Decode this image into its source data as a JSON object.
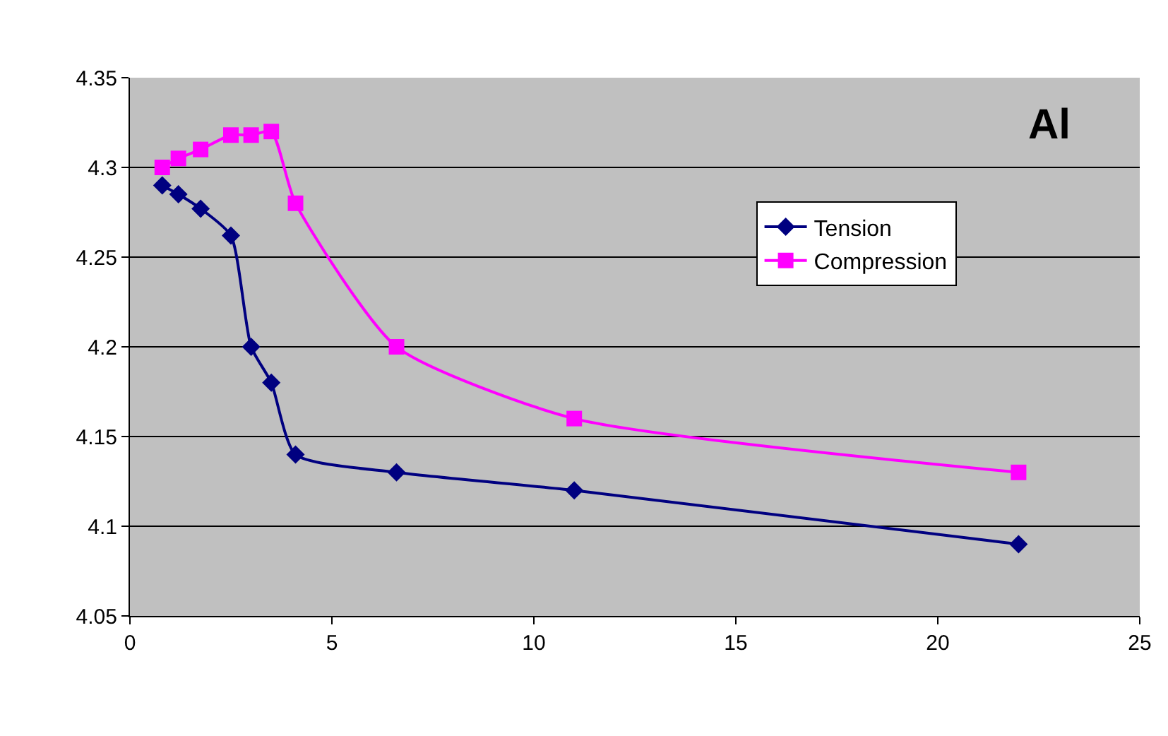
{
  "chart_data": {
    "type": "line",
    "x": [
      0.8,
      1.2,
      1.75,
      2.5,
      3.0,
      3.5,
      4.1,
      6.6,
      11,
      22
    ],
    "series": [
      {
        "name": "Tension",
        "color": "#000080",
        "marker": "diamond",
        "values": [
          4.29,
          4.285,
          4.277,
          4.262,
          4.2,
          4.18,
          4.14,
          4.13,
          4.12,
          4.09
        ]
      },
      {
        "name": "Compression",
        "color": "#ff00ff",
        "marker": "square",
        "values": [
          4.3,
          4.305,
          4.31,
          4.318,
          4.318,
          4.32,
          4.28,
          4.2,
          4.16,
          4.13
        ]
      }
    ],
    "annotations": [
      "Al"
    ],
    "xlim": [
      0,
      25
    ],
    "xticks": [
      0,
      5,
      10,
      15,
      20,
      25
    ],
    "ylim": [
      4.05,
      4.35
    ],
    "yticks": [
      {
        "value": 4.05,
        "label": "4.05"
      },
      {
        "value": 4.1,
        "label": "4.1"
      },
      {
        "value": 4.15,
        "label": "4.15"
      },
      {
        "value": 4.2,
        "label": "4.2"
      },
      {
        "value": 4.25,
        "label": "4.25"
      },
      {
        "value": 4.3,
        "label": "4.3"
      },
      {
        "value": 4.35,
        "label": "4.35"
      }
    ],
    "grid": "y",
    "legend": "top right"
  }
}
